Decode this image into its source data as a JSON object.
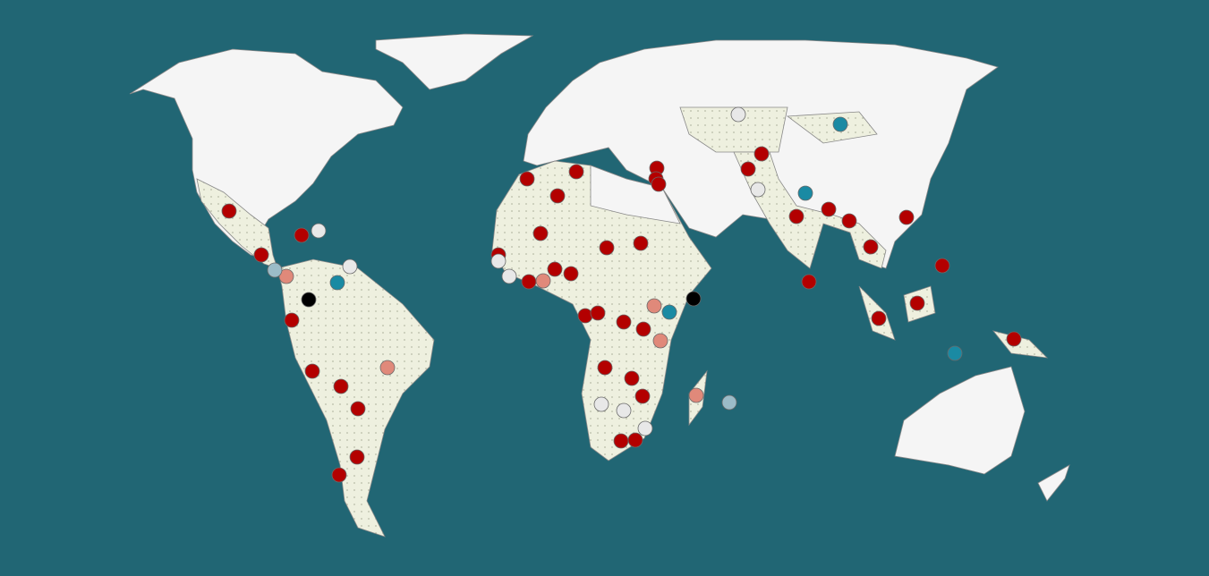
{
  "map": {
    "colors": [
      "#b30000",
      "#e0897a",
      "#e8e8e8",
      "#1a8aa3",
      "#000000",
      "#9bbcc8"
    ]
  }
}
